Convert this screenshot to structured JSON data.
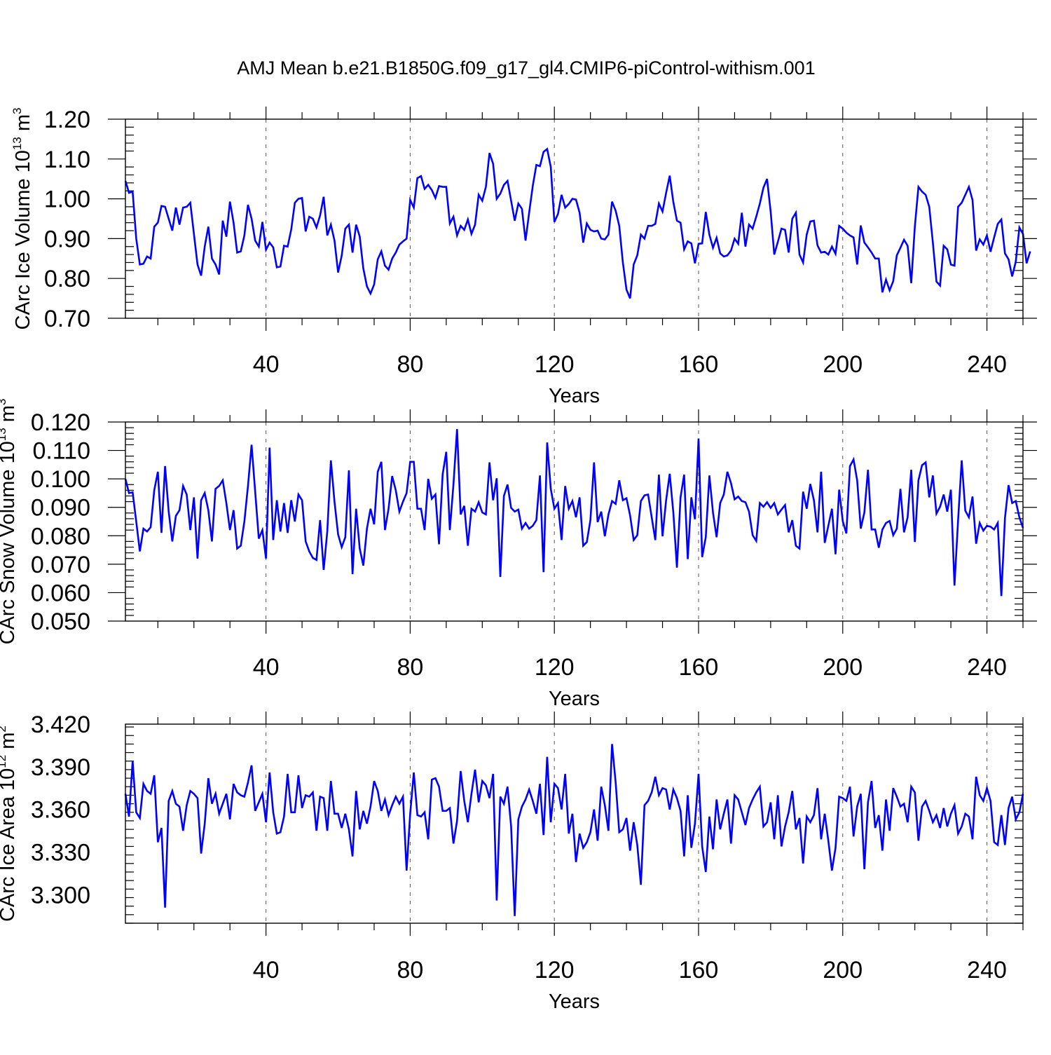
{
  "title": "AMJ Mean b.e21.B1850G.f09_g17_gl4.CMIP6-piControl-withism.001",
  "chart_data": [
    {
      "type": "line",
      "ylabel": "CArc Ice Volume 10",
      "ylabel_exp": "13",
      "ylabel_unit": " m",
      "ylabel_unit_exp": "3",
      "xlabel": "Years",
      "xlim": [
        1,
        250
      ],
      "ylim": [
        0.7,
        1.2
      ],
      "xticks": [
        40,
        80,
        120,
        160,
        200,
        240
      ],
      "yticks": [
        0.7,
        0.8,
        0.9,
        1.0,
        1.1,
        1.2
      ],
      "ytick_labels": [
        "0.70",
        "0.80",
        "0.90",
        "1.00",
        "1.10",
        "1.20"
      ],
      "x_start": 1,
      "series": [
        {
          "name": "CArc Ice Volume",
          "color": "#0000ff",
          "values": [
            1.045,
            1.015,
            1.018,
            0.9,
            0.835,
            0.837,
            0.855,
            0.85,
            0.93,
            0.94,
            0.982,
            0.98,
            0.95,
            0.92,
            0.978,
            0.935,
            0.978,
            0.98,
            0.99,
            0.912,
            0.835,
            0.807,
            0.88,
            0.93,
            0.85,
            0.835,
            0.81,
            0.945,
            0.905,
            0.993,
            0.94,
            0.865,
            0.868,
            0.908,
            0.985,
            0.95,
            0.895,
            0.88,
            0.942,
            0.872,
            0.89,
            0.878,
            0.828,
            0.83,
            0.882,
            0.88,
            0.923,
            0.99,
            1.0,
            1.002,
            0.918,
            0.955,
            0.95,
            0.928,
            0.958,
            1.005,
            0.908,
            0.935,
            0.895,
            0.815,
            0.857,
            0.925,
            0.935,
            0.865,
            0.935,
            0.905,
            0.825,
            0.78,
            0.762,
            0.785,
            0.848,
            0.868,
            0.832,
            0.822,
            0.85,
            0.865,
            0.885,
            0.893,
            0.9,
            0.997,
            0.978,
            1.052,
            1.057,
            1.025,
            1.035,
            1.022,
            1.002,
            1.032,
            1.03,
            1.03,
            0.938,
            0.955,
            0.908,
            0.932,
            0.922,
            0.948,
            0.912,
            0.935,
            1.01,
            0.995,
            1.03,
            1.115,
            1.088,
            1.0,
            1.013,
            1.035,
            1.045,
            0.995,
            0.945,
            0.988,
            0.975,
            0.895,
            0.965,
            1.032,
            1.085,
            1.082,
            1.118,
            1.125,
            1.08,
            0.942,
            0.962,
            1.01,
            0.978,
            0.987,
            1.0,
            0.998,
            0.965,
            0.89,
            0.938,
            0.922,
            0.918,
            0.92,
            0.9,
            0.898,
            0.91,
            0.993,
            0.97,
            0.932,
            0.84,
            0.772,
            0.75,
            0.835,
            0.858,
            0.91,
            0.9,
            0.932,
            0.932,
            0.937,
            0.988,
            0.968,
            1.015,
            1.058,
            0.992,
            0.945,
            0.94,
            0.873,
            0.893,
            0.888,
            0.838,
            0.887,
            0.888,
            0.967,
            0.91,
            0.877,
            0.902,
            0.863,
            0.855,
            0.858,
            0.87,
            0.9,
            0.887,
            0.965,
            0.88,
            0.935,
            0.925,
            0.955,
            0.988,
            1.028,
            1.05,
            0.968,
            0.86,
            0.892,
            0.925,
            0.922,
            0.865,
            0.95,
            0.965,
            0.86,
            0.84,
            0.91,
            0.943,
            0.945,
            0.883,
            0.865,
            0.867,
            0.86,
            0.88,
            0.862,
            0.932,
            0.925,
            0.915,
            0.908,
            0.903,
            0.835,
            0.933,
            0.89,
            0.878,
            0.865,
            0.85,
            0.85,
            0.765,
            0.797,
            0.77,
            0.793,
            0.858,
            0.877,
            0.897,
            0.882,
            0.788,
            0.93,
            1.03,
            1.018,
            1.01,
            0.98,
            0.89,
            0.792,
            0.782,
            0.882,
            0.873,
            0.835,
            0.832,
            0.98,
            0.99,
            1.01,
            1.03,
            0.997,
            0.87,
            0.898,
            0.885,
            0.908,
            0.867,
            0.903,
            0.937,
            0.948,
            0.863,
            0.848,
            0.805,
            0.842,
            0.928,
            0.912,
            0.838,
            0.868
          ]
        }
      ]
    },
    {
      "type": "line",
      "ylabel": "CArc Snow Volume 10",
      "ylabel_exp": "13",
      "ylabel_unit": " m",
      "ylabel_unit_exp": "3",
      "xlabel": "Years",
      "xlim": [
        1,
        250
      ],
      "ylim": [
        0.05,
        0.12
      ],
      "xticks": [
        40,
        80,
        120,
        160,
        200,
        240
      ],
      "yticks": [
        0.05,
        0.06,
        0.07,
        0.08,
        0.09,
        0.1,
        0.11,
        0.12
      ],
      "ytick_labels": [
        "0.050",
        "0.060",
        "0.070",
        "0.080",
        "0.090",
        "0.100",
        "0.110",
        "0.120"
      ],
      "x_start": 1,
      "series": [
        {
          "name": "CArc Snow Volume",
          "color": "#0000ff",
          "values": [
            0.1,
            0.095,
            0.0953,
            0.085,
            0.0745,
            0.0825,
            0.0815,
            0.083,
            0.096,
            0.1025,
            0.081,
            0.1045,
            0.0885,
            0.078,
            0.087,
            0.089,
            0.0975,
            0.0945,
            0.082,
            0.0935,
            0.072,
            0.0925,
            0.095,
            0.089,
            0.078,
            0.0965,
            0.0975,
            0.0995,
            0.0915,
            0.082,
            0.089,
            0.0755,
            0.0765,
            0.085,
            0.0975,
            0.112,
            0.0955,
            0.079,
            0.082,
            0.072,
            0.111,
            0.0785,
            0.0925,
            0.0815,
            0.0915,
            0.081,
            0.0925,
            0.085,
            0.0945,
            0.0925,
            0.078,
            0.0745,
            0.0722,
            0.0715,
            0.0855,
            0.068,
            0.0815,
            0.1065,
            0.092,
            0.0805,
            0.076,
            0.0795,
            0.103,
            0.0665,
            0.0895,
            0.0755,
            0.0695,
            0.0825,
            0.0895,
            0.084,
            0.1025,
            0.106,
            0.082,
            0.0895,
            0.101,
            0.096,
            0.0885,
            0.092,
            0.095,
            0.106,
            0.106,
            0.0895,
            0.0895,
            0.082,
            0.1,
            0.093,
            0.0945,
            0.077,
            0.1015,
            0.1095,
            0.082,
            0.098,
            0.1175,
            0.0875,
            0.0905,
            0.0765,
            0.0895,
            0.0885,
            0.0918,
            0.0882,
            0.0875,
            0.1058,
            0.0925,
            0.1002,
            0.0655,
            0.094,
            0.098,
            0.0898,
            0.0885,
            0.0892,
            0.0825,
            0.0845,
            0.0825,
            0.0835,
            0.0855,
            0.1012,
            0.0672,
            0.1128,
            0.0965,
            0.0895,
            0.0915,
            0.0785,
            0.0975,
            0.0895,
            0.0922,
            0.0865,
            0.0935,
            0.0765,
            0.0778,
            0.0855,
            0.1058,
            0.0848,
            0.0885,
            0.0798,
            0.0875,
            0.0922,
            0.0912,
            0.0995,
            0.0925,
            0.0932,
            0.0872,
            0.0785,
            0.0802,
            0.0922,
            0.0942,
            0.0945,
            0.0865,
            0.0785,
            0.1015,
            0.0798,
            0.0925,
            0.1018,
            0.0882,
            0.0688,
            0.0935,
            0.1015,
            0.0718,
            0.0935,
            0.0858,
            0.1142,
            0.0725,
            0.0795,
            0.1012,
            0.0882,
            0.0795,
            0.0915,
            0.0945,
            0.1025,
            0.0985,
            0.0928,
            0.0938,
            0.0922,
            0.0918,
            0.0885,
            0.0802,
            0.0782,
            0.0915,
            0.0902,
            0.0918,
            0.0898,
            0.0915,
            0.0875,
            0.0892,
            0.0908,
            0.0812,
            0.0855,
            0.0765,
            0.0755,
            0.0955,
            0.0895,
            0.0982,
            0.0925,
            0.0812,
            0.1025,
            0.0775,
            0.0835,
            0.0895,
            0.0735,
            0.0962,
            0.0852,
            0.0808,
            0.1045,
            0.1068,
            0.0995,
            0.0825,
            0.0882,
            0.1032,
            0.0822,
            0.0822,
            0.0758,
            0.0822,
            0.0845,
            0.0852,
            0.0802,
            0.0825,
            0.0965,
            0.0812,
            0.0865,
            0.1032,
            0.0778,
            0.0995,
            0.1048,
            0.1058,
            0.0935,
            0.1012,
            0.0878,
            0.0902,
            0.0945,
            0.0885,
            0.0962,
            0.0625,
            0.0855,
            0.1065,
            0.0888,
            0.0865,
            0.0938,
            0.0772,
            0.0845,
            0.0818,
            0.0835,
            0.0832,
            0.0822,
            0.0845,
            0.0588,
            0.0862,
            0.0978,
            0.0915,
            0.0922,
            0.0865,
            0.0828
          ]
        }
      ]
    },
    {
      "type": "line",
      "ylabel": "CArc Ice Area 10",
      "ylabel_exp": "12",
      "ylabel_unit": " m",
      "ylabel_unit_exp": "2",
      "xlabel": "Years",
      "xlim": [
        1,
        250
      ],
      "ylim": [
        3.28,
        3.42
      ],
      "xticks": [
        40,
        80,
        120,
        160,
        200,
        240
      ],
      "yticks": [
        3.3,
        3.33,
        3.36,
        3.39,
        3.42
      ],
      "ytick_labels": [
        "3.300",
        "3.330",
        "3.360",
        "3.390",
        "3.420"
      ],
      "x_start": 1,
      "series": [
        {
          "name": "CArc Ice Area",
          "color": "#0000ff",
          "values": [
            3.371,
            3.355,
            3.394,
            3.358,
            3.354,
            3.378,
            3.373,
            3.371,
            3.384,
            3.337,
            3.347,
            3.291,
            3.366,
            3.373,
            3.364,
            3.362,
            3.345,
            3.363,
            3.373,
            3.371,
            3.368,
            3.329,
            3.35,
            3.382,
            3.364,
            3.371,
            3.357,
            3.364,
            3.371,
            3.353,
            3.378,
            3.372,
            3.37,
            3.369,
            3.379,
            3.391,
            3.359,
            3.365,
            3.371,
            3.351,
            3.386,
            3.358,
            3.343,
            3.344,
            3.355,
            3.385,
            3.358,
            3.358,
            3.384,
            3.361,
            3.37,
            3.369,
            3.372,
            3.345,
            3.369,
            3.368,
            3.345,
            3.38,
            3.357,
            3.357,
            3.347,
            3.357,
            3.346,
            3.327,
            3.373,
            3.346,
            3.359,
            3.35,
            3.362,
            3.38,
            3.373,
            3.359,
            3.367,
            3.356,
            3.363,
            3.369,
            3.364,
            3.369,
            3.317,
            3.357,
            3.386,
            3.356,
            3.355,
            3.358,
            3.339,
            3.381,
            3.382,
            3.376,
            3.359,
            3.359,
            3.361,
            3.336,
            3.352,
            3.387,
            3.366,
            3.351,
            3.371,
            3.388,
            3.365,
            3.38,
            3.377,
            3.368,
            3.385,
            3.296,
            3.369,
            3.364,
            3.376,
            3.348,
            3.285,
            3.353,
            3.362,
            3.367,
            3.374,
            3.366,
            3.357,
            3.378,
            3.342,
            3.397,
            3.351,
            3.378,
            3.375,
            3.36,
            3.385,
            3.343,
            3.357,
            3.323,
            3.343,
            3.333,
            3.337,
            3.344,
            3.36,
            3.338,
            3.376,
            3.363,
            3.345,
            3.406,
            3.379,
            3.344,
            3.346,
            3.354,
            3.331,
            3.351,
            3.335,
            3.307,
            3.363,
            3.366,
            3.372,
            3.383,
            3.37,
            3.375,
            3.374,
            3.36,
            3.374,
            3.368,
            3.359,
            3.327,
            3.37,
            3.333,
            3.35,
            3.385,
            3.334,
            3.316,
            3.355,
            3.332,
            3.367,
            3.346,
            3.357,
            3.367,
            3.336,
            3.37,
            3.367,
            3.358,
            3.349,
            3.361,
            3.367,
            3.372,
            3.376,
            3.348,
            3.351,
            3.365,
            3.339,
            3.37,
            3.334,
            3.348,
            3.358,
            3.373,
            3.346,
            3.354,
            3.322,
            3.355,
            3.351,
            3.356,
            3.375,
            3.339,
            3.357,
            3.338,
            3.317,
            3.333,
            3.369,
            3.368,
            3.366,
            3.376,
            3.341,
            3.362,
            3.371,
            3.318,
            3.365,
            3.38,
            3.347,
            3.356,
            3.331,
            3.367,
            3.345,
            3.375,
            3.369,
            3.362,
            3.364,
            3.351,
            3.376,
            3.372,
            3.338,
            3.362,
            3.366,
            3.359,
            3.351,
            3.356,
            3.347,
            3.361,
            3.348,
            3.357,
            3.363,
            3.343,
            3.348,
            3.357,
            3.355,
            3.339,
            3.383,
            3.37,
            3.366,
            3.375,
            3.366,
            3.337,
            3.335,
            3.356,
            3.335,
            3.361,
            3.369,
            3.353,
            3.358,
            3.371
          ]
        }
      ]
    }
  ]
}
